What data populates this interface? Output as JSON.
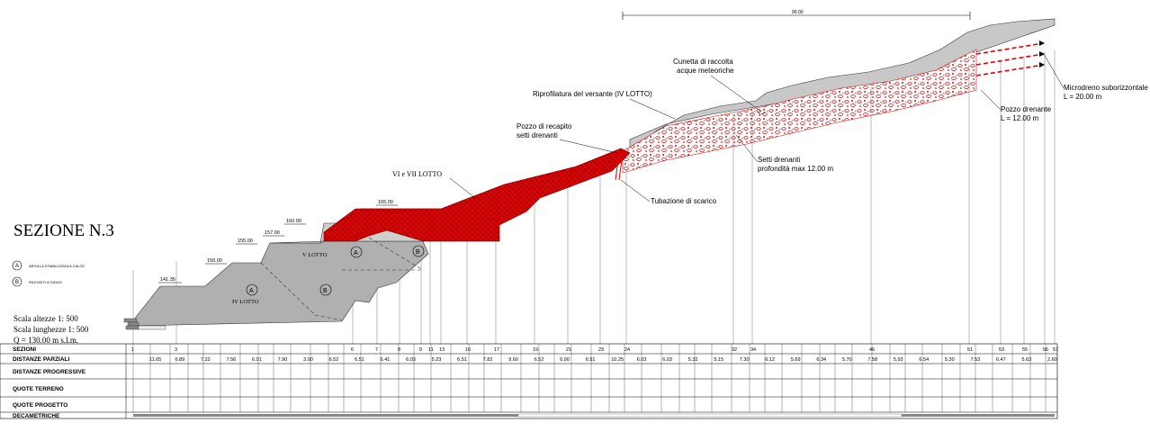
{
  "title": "SEZIONE N.3",
  "scales": {
    "heights": "Scala altezze 1: 500",
    "lengths": "Scala lunghezze 1: 500",
    "datum": "Q =  130.00  m s.l.m."
  },
  "legend": [
    {
      "symbol": "A",
      "text": "ARGILLA STABILIZZATA A CALCE"
    },
    {
      "symbol": "B",
      "text": "RILEVATO A GIOGO"
    }
  ],
  "dimension_top": "90.00",
  "lots": {
    "iv": "IV LOTTO",
    "v": "V LOTTO",
    "vi_vii": "VI e VII  LOTTO"
  },
  "zone_markers": [
    "A",
    "B",
    "A",
    "B"
  ],
  "elevations": [
    "141.35",
    "150.00",
    "155.00",
    "157.00",
    "160.00",
    "165.00"
  ],
  "annotations": {
    "cunetta": [
      "Cunetta di raccolta",
      "acque meteoriche"
    ],
    "riprofilatura": "Riprofilatura del versante (IV LOTTO)",
    "pozzo_recapito": [
      "Pozzo di recapito",
      "setti drenanti"
    ],
    "setti": [
      "Setti drenanti",
      "profondità max 12.00 m"
    ],
    "tubazione": "Tubazione di scarico",
    "pozzo_drenante": [
      "Pozzo drenante",
      "L = 12.00 m"
    ],
    "microdreno": [
      "Microdreno suborizzontale",
      "L = 20.00 m"
    ]
  },
  "table": {
    "rows": [
      "SEZIONI",
      "DISTANZE PARZIALI",
      "DISTANZE PROGRESSIVE",
      "QUOTE TERRENO",
      "QUOTE PROGETTO",
      "DECAMETRICHE"
    ],
    "sections": [
      "1",
      "3",
      "6",
      "7",
      "8",
      "9",
      "11",
      "13",
      "16",
      "17",
      "19",
      "21",
      "23",
      "24",
      "32",
      "34",
      "46",
      "51",
      "53",
      "55",
      "56",
      "57"
    ],
    "partial_distances": [
      "11.65",
      "6.89",
      "7.22",
      "7.56",
      "6.01",
      "7.90",
      "3.00",
      "6.52",
      "6.51",
      "6.41",
      "6.03",
      "5.23",
      "6.51",
      "7.82",
      "9.60",
      "6.52",
      "6.90",
      "6.51",
      "10.25",
      "6.03",
      "6.03",
      "5.32",
      "5.15",
      "7.30",
      "6.12",
      "5.69",
      "6.34",
      "5.70",
      "7.58",
      "5.93",
      "6.54",
      "5.30",
      "7.53",
      "6.47",
      "5.63",
      "2.60"
    ]
  }
}
